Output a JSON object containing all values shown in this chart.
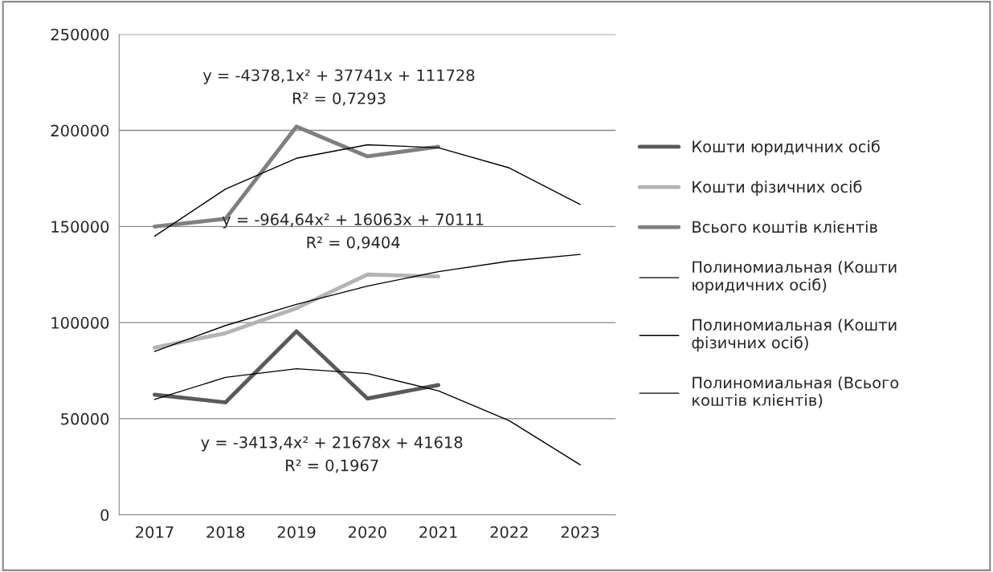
{
  "chart_data": {
    "type": "line",
    "categories": [
      "2017",
      "2018",
      "2019",
      "2020",
      "2021",
      "2022",
      "2023"
    ],
    "series": [
      {
        "name": "Кошти юридичних осіб",
        "color": "#5a5a5a",
        "values": [
          62500,
          58500,
          95500,
          60500,
          67500,
          null,
          null
        ]
      },
      {
        "name": "Кошти фізичних осіб",
        "color": "#b4b4b4",
        "values": [
          87000,
          94500,
          107500,
          125000,
          124000,
          null,
          null
        ]
      },
      {
        "name": "Всього коштів клієнтів",
        "color": "#7f7f7f",
        "values": [
          150000,
          154000,
          202000,
          186500,
          191500,
          null,
          null
        ]
      },
      {
        "name": "Полиномиальная (Кошти\nюридичних осіб)",
        "color": "#000000",
        "values": [
          60000,
          71500,
          76000,
          73500,
          64500,
          49000,
          26000
        ]
      },
      {
        "name": "Полиномиальная (Кошти\nфізичних осіб)",
        "color": "#000000",
        "values": [
          85000,
          98500,
          109500,
          119000,
          126500,
          132000,
          135500
        ]
      },
      {
        "name": "Полиномиальная (Всього\nкоштів клієнтів)",
        "color": "#000000",
        "values": [
          145000,
          169500,
          185500,
          192500,
          191000,
          180500,
          161500
        ]
      }
    ],
    "annotations": [
      "y = -4378,1x² + 37741x + 111728",
      "R² = 0,7293",
      "y = -964,64x² + 16063x + 70111",
      "R² = 0,9404",
      "y = -3413,4x² + 21678x + 41618",
      "R² = 0,1967"
    ],
    "ylim": [
      0,
      250000
    ],
    "yticks": [
      0,
      50000,
      100000,
      150000,
      200000,
      250000
    ],
    "grid": "y",
    "legend": "right",
    "marker": "none",
    "line_style": "solid"
  }
}
